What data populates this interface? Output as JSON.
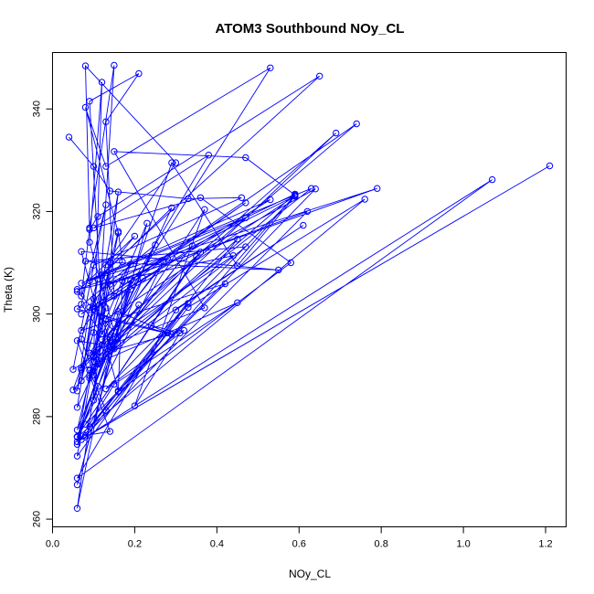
{
  "chart_data": {
    "type": "line",
    "title": "ATOM3 Southbound NOy_CL",
    "xlabel": "NOy_CL",
    "ylabel": "Theta (K)",
    "xlim": [
      0.0,
      1.25
    ],
    "ylim": [
      258.5,
      351.0
    ],
    "x_ticks": [
      "0.0",
      "0.2",
      "0.4",
      "0.6",
      "0.8",
      "1.0",
      "1.2"
    ],
    "y_ticks": [
      "260",
      "280",
      "300",
      "320",
      "340"
    ],
    "grid": false,
    "series_color": "#0000ff",
    "series": [
      {
        "x": [
          0.04,
          0.1,
          0.14,
          0.33,
          0.46,
          0.1,
          0.07,
          0.09,
          0.11,
          0.65,
          0.12,
          0.15,
          0.13,
          0.21,
          0.09,
          0.12,
          0.16,
          0.08,
          0.13,
          0.53,
          0.19,
          0.1,
          0.15,
          0.09,
          0.08,
          0.3,
          0.13,
          0.06,
          0.09,
          0.17,
          0.16,
          0.07,
          0.1,
          0.14,
          0.29,
          0.12,
          0.2,
          0.06,
          0.15,
          0.09,
          0.12,
          0.1,
          0.05,
          0.13,
          0.07,
          0.12,
          0.16,
          0.1,
          0.05,
          0.11,
          0.06,
          0.11,
          0.07,
          0.11,
          0.06,
          0.14,
          0.06,
          0.33,
          0.06,
          0.15,
          0.45,
          0.07,
          0.14,
          0.06,
          0.22,
          0.09,
          0.21,
          0.14,
          0.06,
          0.13,
          0.1,
          0.14,
          0.62,
          0.08,
          0.14,
          0.06,
          0.12,
          0.1,
          0.25,
          0.06,
          0.28,
          0.09,
          0.45,
          0.11,
          0.06,
          0.16,
          0.29,
          0.13,
          0.23,
          0.06,
          0.19,
          0.1,
          0.35,
          0.08,
          0.42,
          0.07,
          0.19,
          0.09,
          0.34,
          0.12,
          0.13,
          0.59,
          0.17,
          0.16,
          0.58,
          0.36,
          0.1,
          0.38,
          0.07,
          0.28,
          0.06,
          0.44,
          0.09,
          0.37,
          0.15,
          0.47,
          0.59,
          0.13,
          0.09,
          0.47,
          0.08,
          0.55,
          0.07,
          0.16,
          0.64,
          0.1,
          0.47,
          0.07,
          0.74,
          0.12,
          0.69,
          0.14,
          0.63,
          0.07,
          0.53,
          0.1,
          0.47,
          0.09,
          0.79,
          0.13,
          0.59,
          0.15,
          0.37,
          0.2,
          0.31,
          0.24,
          0.61,
          0.3,
          0.06,
          1.07,
          0.07,
          1.21,
          0.08,
          0.33,
          0.76,
          0.06,
          0.29,
          0.45,
          0.59,
          0.13,
          0.32,
          0.1,
          0.27,
          0.06,
          0.36
        ],
        "y": [
          334.5,
          328.8,
          324.0,
          322.5,
          322.7,
          309.5,
          303.5,
          316.5,
          319.0,
          346.4,
          307.8,
          303.5,
          337.5,
          346.9,
          341.5,
          299.5,
          315.8,
          340.3,
          328.8,
          348.0,
          304.8,
          283.2,
          348.5,
          316.8,
          348.4,
          329.5,
          309.6,
          285.0,
          301.3,
          310.2,
          316.1,
          287.0,
          303.0,
          295.0,
          320.7,
          307.5,
          315.2,
          304.4,
          296.6,
          314.0,
          345.2,
          291.8,
          289.2,
          321.3,
          301.9,
          296.1,
          323.8,
          296.4,
          285.2,
          290.5,
          281.8,
          306.8,
          295.1,
          285.9,
          275.1,
          310.0,
          272.3,
          302.1,
          274.6,
          286.3,
          302.2,
          289.1,
          295.4,
          276.0,
          307.0,
          288.0,
          301.8,
          293.6,
          277.4,
          301.2,
          291.6,
          305.8,
          320.0,
          276.3,
          277.1,
          294.8,
          294.0,
          288.1,
          313.5,
          301.0,
          296.3,
          278.0,
          314.6,
          290.2,
          262.1,
          300.5,
          296.0,
          299.1,
          317.7,
          266.7,
          306.5,
          290.8,
          311.2,
          278.5,
          305.9,
          296.8,
          309.7,
          287.5,
          313.3,
          290.9,
          299.0,
          323.0,
          306.5,
          284.8,
          310.0,
          322.7,
          316.8,
          331.0,
          289.5,
          310.8,
          304.8,
          311.4,
          292.4,
          301.2,
          331.7,
          330.5,
          323.2,
          281.2,
          289.0,
          313.1,
          310.3,
          308.6,
          312.2,
          285.0,
          324.4,
          301.0,
          321.7,
          300.0,
          337.1,
          295.0,
          335.3,
          293.7,
          324.5,
          306.0,
          322.3,
          300.9,
          318.8,
          306.5,
          324.5,
          305.7,
          323.4,
          293.2,
          320.4,
          282.1,
          296.3,
          297.8,
          317.3,
          300.8,
          268.0,
          326.2,
          275.5,
          328.9,
          276.0,
          301.3,
          322.4,
          276.0,
          329.5,
          309.4,
          323.0,
          285.4,
          296.8,
          291.9,
          310.2,
          276.1,
          312.1
        ]
      }
    ]
  }
}
